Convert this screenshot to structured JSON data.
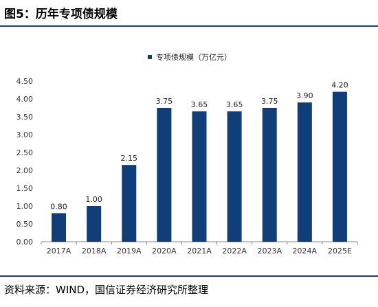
{
  "figure": {
    "title": "图5：历年专项债规模",
    "source": "资料来源：WIND，国信证券经济研究所整理"
  },
  "chart_data": {
    "type": "bar",
    "title": "",
    "xlabel": "",
    "ylabel": "",
    "categories": [
      "2017A",
      "2018A",
      "2019A",
      "2020A",
      "2021A",
      "2022A",
      "2023A",
      "2024A",
      "2025E"
    ],
    "series": [
      {
        "name": "专项债规模（万亿元）",
        "values": [
          0.8,
          1.0,
          2.15,
          3.75,
          3.65,
          3.65,
          3.75,
          3.9,
          4.2
        ],
        "labels": [
          "0.80",
          "1.00",
          "2.15",
          "3.75",
          "3.65",
          "3.65",
          "3.75",
          "3.90",
          "4.20"
        ]
      }
    ],
    "yticks": [
      "0.00",
      "0.50",
      "1.00",
      "1.50",
      "2.00",
      "2.50",
      "3.00",
      "3.50",
      "4.00",
      "4.50"
    ],
    "ylim": [
      0,
      4.5
    ],
    "grid": false,
    "legend_position": "top-center",
    "bar_color": "#0f3e78"
  }
}
